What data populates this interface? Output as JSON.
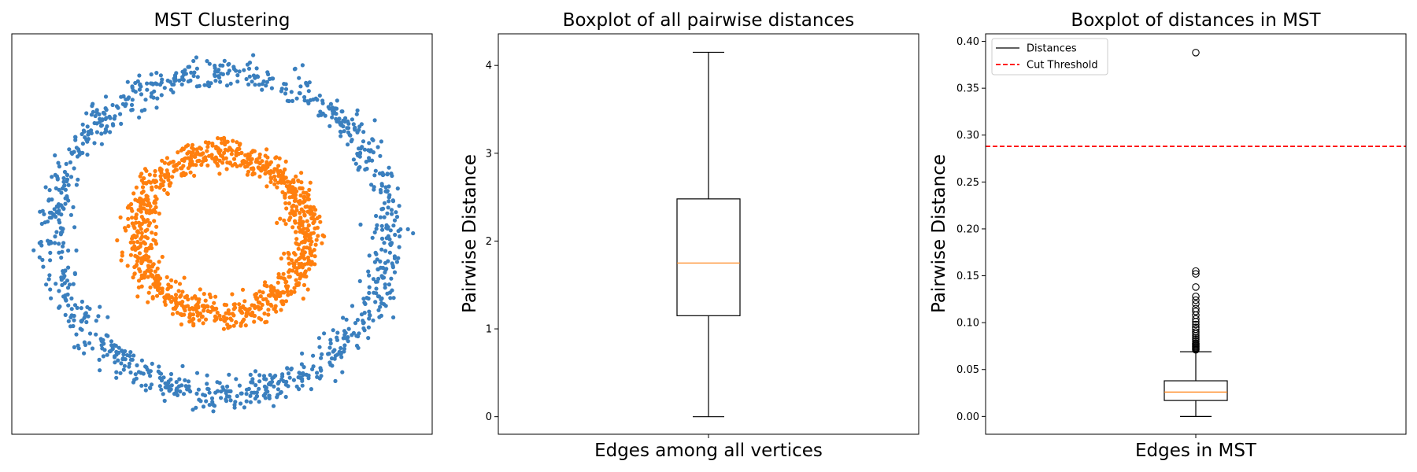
{
  "chart_data": [
    {
      "type": "scatter",
      "title": "MST Clustering",
      "xlabel": "",
      "ylabel": "",
      "axes_ticks": false,
      "grid": false,
      "data_description_units": "data units centred on origin, axes hidden",
      "xlim": [
        -1.25,
        1.25
      ],
      "ylim": [
        -1.25,
        1.25
      ],
      "series": [
        {
          "cluster": "outer-ring",
          "color": "#3a7fbe",
          "center": [
            0,
            0
          ],
          "radius": 1.0,
          "radial_noise_sd": 0.05,
          "points": 1000
        },
        {
          "cluster": "inner-ring",
          "color": "#ff7f0e",
          "center": [
            0,
            0
          ],
          "radius": 0.5,
          "radial_noise_sd": 0.05,
          "points": 1000
        }
      ]
    },
    {
      "type": "box",
      "title": "Boxplot of all pairwise distances",
      "xlabel": "Edges among all vertices",
      "ylabel": "Pairwise Distance",
      "ylim": [
        -0.2,
        4.36
      ],
      "yticks": [
        0,
        1,
        2,
        3,
        4
      ],
      "ytick_labels": [
        "0",
        "1",
        "2",
        "3",
        "4"
      ],
      "box": {
        "min": 0.0,
        "q1": 1.15,
        "median": 1.75,
        "q3": 2.48,
        "max": 4.15,
        "outliers": []
      },
      "median_color": "#ff7f0e",
      "grid": false
    },
    {
      "type": "box",
      "title": "Boxplot of distances in MST",
      "xlabel": "Edges in MST",
      "ylabel": "Pairwise Distance",
      "ylim": [
        -0.019,
        0.408
      ],
      "yticks": [
        0.0,
        0.05,
        0.1,
        0.15,
        0.2,
        0.25,
        0.3,
        0.35,
        0.4
      ],
      "ytick_labels": [
        "0.00",
        "0.05",
        "0.10",
        "0.15",
        "0.20",
        "0.25",
        "0.30",
        "0.35",
        "0.40"
      ],
      "box": {
        "min": 0.0,
        "q1": 0.017,
        "median": 0.026,
        "q3": 0.038,
        "max": 0.069,
        "outliers": [
          0.071,
          0.072,
          0.073,
          0.074,
          0.075,
          0.076,
          0.077,
          0.078,
          0.08,
          0.082,
          0.084,
          0.086,
          0.088,
          0.09,
          0.093,
          0.095,
          0.098,
          0.101,
          0.104,
          0.108,
          0.112,
          0.115,
          0.12,
          0.124,
          0.128,
          0.138,
          0.152,
          0.155,
          0.388
        ]
      },
      "threshold": {
        "value": 0.288,
        "color": "#ff0000",
        "style": "dashed"
      },
      "legend": {
        "position": "top-left",
        "entries": [
          "Distances",
          "Cut Threshold"
        ]
      },
      "median_color": "#ff7f0e",
      "grid": false
    }
  ]
}
